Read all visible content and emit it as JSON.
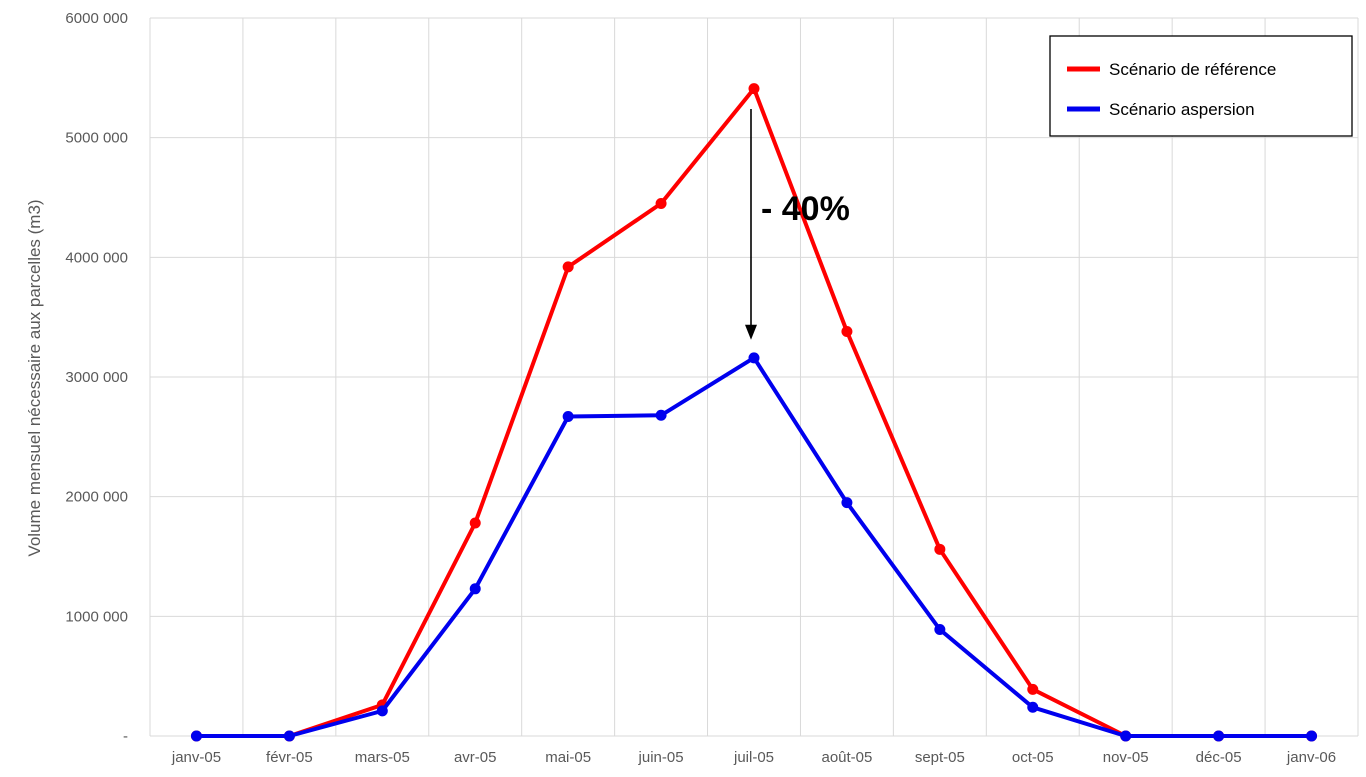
{
  "chart_data": {
    "type": "line",
    "title": "",
    "xlabel": "",
    "ylabel": "Volume mensuel nécessaire aux parcelles (m3)",
    "categories": [
      "janv-05",
      "févr-05",
      "mars-05",
      "avr-05",
      "mai-05",
      "juin-05",
      "juil-05",
      "août-05",
      "sept-05",
      "oct-05",
      "nov-05",
      "déc-05",
      "janv-06"
    ],
    "ylim": [
      0,
      6000000
    ],
    "yticks": [
      0,
      1000000,
      2000000,
      3000000,
      4000000,
      5000000,
      6000000
    ],
    "ytick_labels": [
      "-",
      "1000 000",
      "2000 000",
      "3000 000",
      "4000 000",
      "5000 000",
      "6000 000"
    ],
    "grid": true,
    "legend_position": "top-right",
    "series": [
      {
        "name": "Scénario de référence",
        "color": "#ff0000",
        "values": [
          0,
          0,
          260000,
          1780000,
          3920000,
          4450000,
          5410000,
          3380000,
          1560000,
          390000,
          0,
          0,
          0
        ]
      },
      {
        "name": "Scénario aspersion",
        "color": "#0000ee",
        "values": [
          0,
          0,
          210000,
          1230000,
          2670000,
          2680000,
          3160000,
          1950000,
          890000,
          240000,
          0,
          0,
          0
        ]
      }
    ],
    "annotation": {
      "text": "- 40%",
      "category": "juil-05",
      "from_value": 5240000,
      "to_value": 3320000
    }
  }
}
